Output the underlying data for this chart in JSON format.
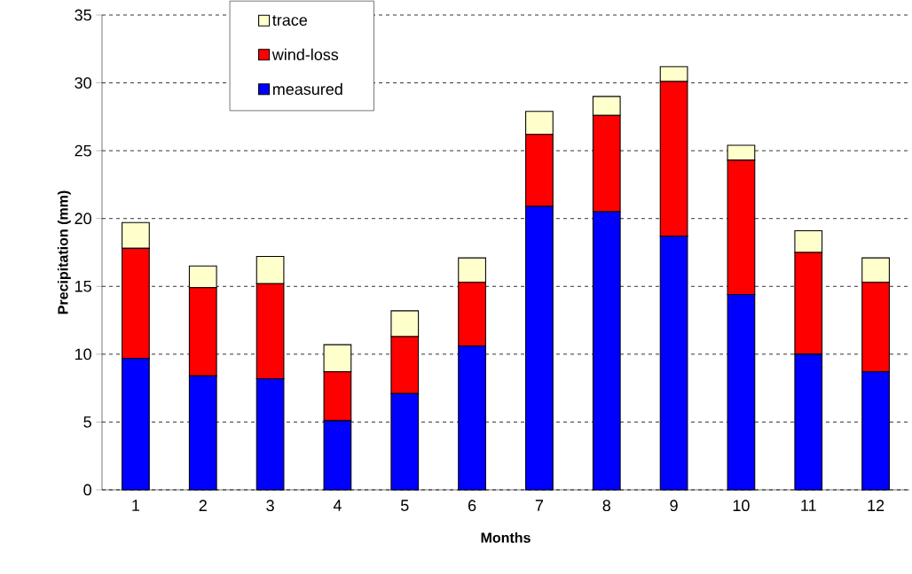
{
  "chart_data": {
    "type": "bar",
    "stacked": true,
    "xlabel": "Months",
    "ylabel": "Precipitation (mm)",
    "categories": [
      "1",
      "2",
      "3",
      "4",
      "5",
      "6",
      "7",
      "8",
      "9",
      "10",
      "11",
      "12"
    ],
    "series": [
      {
        "name": "measured",
        "color": "#0000ff",
        "values": [
          9.7,
          8.4,
          8.2,
          5.1,
          7.1,
          10.6,
          20.9,
          20.5,
          18.7,
          14.4,
          10.0,
          8.7
        ]
      },
      {
        "name": "wind-loss",
        "color": "#ff0000",
        "values": [
          8.1,
          6.5,
          7.0,
          3.6,
          4.2,
          4.7,
          5.3,
          7.1,
          11.4,
          9.9,
          7.5,
          6.6
        ]
      },
      {
        "name": "trace",
        "color": "#ffffcc",
        "values": [
          1.9,
          1.6,
          2.0,
          2.0,
          1.9,
          1.8,
          1.7,
          1.4,
          1.1,
          1.1,
          1.6,
          1.8
        ]
      }
    ],
    "ylim": [
      0,
      35
    ],
    "yticks": [
      0,
      5,
      10,
      15,
      20,
      25,
      30,
      35
    ],
    "grid": "y",
    "legend": "top left"
  }
}
